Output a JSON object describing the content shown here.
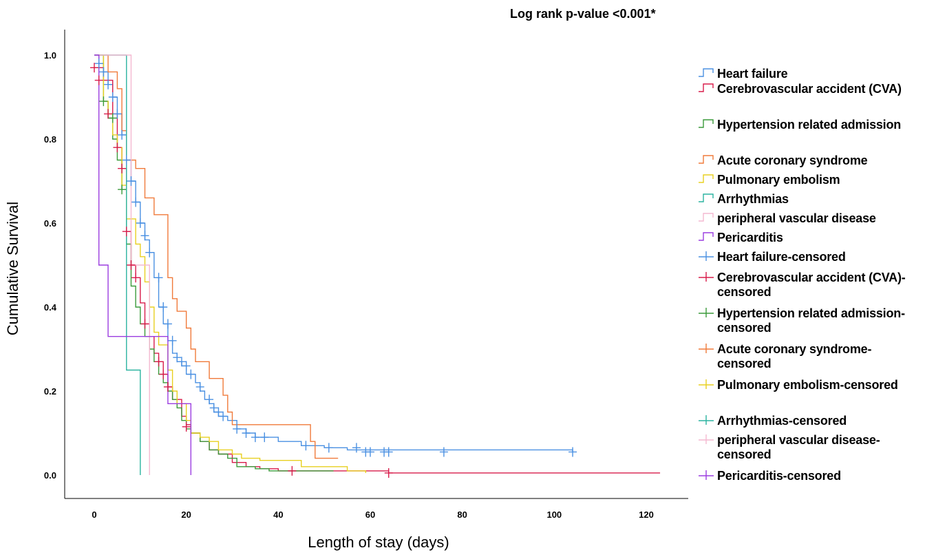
{
  "chart_data": {
    "type": "line",
    "title": "Log rank p-value <0.001*",
    "xlabel": "Length of stay (days)",
    "ylabel": "Cumulative Survival",
    "xlim": [
      -6,
      130
    ],
    "ylim": [
      -0.05,
      1.05
    ],
    "xticks": [
      "0",
      "20",
      "40",
      "60",
      "80",
      "100",
      "120"
    ],
    "xtick_values": [
      0,
      20,
      40,
      60,
      80,
      100,
      120
    ],
    "yticks": [
      "0.0",
      "0.2",
      "0.4",
      "0.6",
      "0.8",
      "1.0"
    ],
    "ytick_values": [
      0.0,
      0.2,
      0.4,
      0.6,
      0.8,
      1.0
    ],
    "grid": false,
    "legend_position": "right",
    "legend": [
      "Heart failure",
      "Cerebrovascular accident (CVA)",
      "Hypertension related admission",
      "Acute coronary syndrome",
      "Pulmonary embolism",
      "Arrhythmias",
      "peripheral vascular disease",
      "Pericarditis",
      "Heart failure-censored",
      "Cerebrovascular accident (CVA)-censored",
      "Hypertension related admission-censored",
      "Acute coronary syndrome-censored",
      "Pulmonary embolism-censored",
      "Arrhythmias-censored",
      "peripheral vascular disease-censored",
      "Pericarditis-censored"
    ],
    "series": [
      {
        "name": "Heart failure",
        "color": "#4a90e2",
        "steps": [
          [
            0,
            1.0
          ],
          [
            1,
            0.98
          ],
          [
            2,
            0.96
          ],
          [
            3,
            0.93
          ],
          [
            4,
            0.9
          ],
          [
            5,
            0.86
          ],
          [
            6,
            0.81
          ],
          [
            7,
            0.75
          ],
          [
            8,
            0.7
          ],
          [
            9,
            0.65
          ],
          [
            10,
            0.6
          ],
          [
            11,
            0.56
          ],
          [
            12,
            0.53
          ],
          [
            13,
            0.47
          ],
          [
            14,
            0.4
          ],
          [
            15,
            0.36
          ],
          [
            16,
            0.32
          ],
          [
            17,
            0.29
          ],
          [
            18,
            0.27
          ],
          [
            19,
            0.26
          ],
          [
            20,
            0.24
          ],
          [
            22,
            0.22
          ],
          [
            23,
            0.2
          ],
          [
            24,
            0.18
          ],
          [
            25,
            0.17
          ],
          [
            26,
            0.15
          ],
          [
            27,
            0.14
          ],
          [
            29,
            0.13
          ],
          [
            31,
            0.11
          ],
          [
            33,
            0.1
          ],
          [
            35,
            0.09
          ],
          [
            40,
            0.08
          ],
          [
            45,
            0.07
          ],
          [
            50,
            0.065
          ],
          [
            55,
            0.06
          ],
          [
            104,
            0.055
          ]
        ],
        "censored": [
          [
            1,
            0.98
          ],
          [
            2,
            0.96
          ],
          [
            3,
            0.93
          ],
          [
            4,
            0.9
          ],
          [
            5,
            0.86
          ],
          [
            6,
            0.81
          ],
          [
            7,
            0.75
          ],
          [
            8,
            0.7
          ],
          [
            9,
            0.65
          ],
          [
            10,
            0.6
          ],
          [
            11,
            0.57
          ],
          [
            12,
            0.53
          ],
          [
            14,
            0.47
          ],
          [
            15,
            0.4
          ],
          [
            16,
            0.36
          ],
          [
            17,
            0.32
          ],
          [
            18,
            0.28
          ],
          [
            19,
            0.27
          ],
          [
            20,
            0.26
          ],
          [
            21,
            0.24
          ],
          [
            23,
            0.21
          ],
          [
            25,
            0.18
          ],
          [
            26,
            0.16
          ],
          [
            27,
            0.15
          ],
          [
            28,
            0.14
          ],
          [
            31,
            0.11
          ],
          [
            33,
            0.1
          ],
          [
            35,
            0.09
          ],
          [
            37,
            0.09
          ],
          [
            46,
            0.07
          ],
          [
            51,
            0.065
          ],
          [
            57,
            0.065
          ],
          [
            59,
            0.055
          ],
          [
            60,
            0.055
          ],
          [
            63,
            0.055
          ],
          [
            64,
            0.055
          ],
          [
            76,
            0.055
          ],
          [
            104,
            0.055
          ]
        ]
      },
      {
        "name": "Cerebrovascular accident (CVA)",
        "color": "#d81b4a",
        "steps": [
          [
            0,
            0.97
          ],
          [
            2,
            0.94
          ],
          [
            4,
            0.86
          ],
          [
            5,
            0.78
          ],
          [
            6,
            0.73
          ],
          [
            7,
            0.58
          ],
          [
            8,
            0.5
          ],
          [
            9,
            0.47
          ],
          [
            10,
            0.41
          ],
          [
            11,
            0.36
          ],
          [
            12,
            0.33
          ],
          [
            13,
            0.29
          ],
          [
            14,
            0.27
          ],
          [
            15,
            0.24
          ],
          [
            16,
            0.21
          ],
          [
            17,
            0.18
          ],
          [
            19,
            0.14
          ],
          [
            20,
            0.12
          ],
          [
            21,
            0.1
          ],
          [
            23,
            0.08
          ],
          [
            25,
            0.06
          ],
          [
            27,
            0.05
          ],
          [
            30,
            0.03
          ],
          [
            33,
            0.02
          ],
          [
            36,
            0.015
          ],
          [
            40,
            0.01
          ],
          [
            45,
            0.01
          ],
          [
            55,
            0.01
          ],
          [
            64,
            0.005
          ],
          [
            123,
            0.005
          ]
        ],
        "censored": [
          [
            0,
            0.97
          ],
          [
            1,
            0.94
          ],
          [
            3,
            0.86
          ],
          [
            5,
            0.78
          ],
          [
            6,
            0.73
          ],
          [
            7,
            0.58
          ],
          [
            8,
            0.5
          ],
          [
            9,
            0.47
          ],
          [
            11,
            0.36
          ],
          [
            14,
            0.27
          ],
          [
            15,
            0.24
          ],
          [
            16,
            0.21
          ],
          [
            20,
            0.115
          ],
          [
            43,
            0.01
          ],
          [
            64,
            0.005
          ]
        ]
      },
      {
        "name": "Hypertension related admission",
        "color": "#3a9a3a",
        "steps": [
          [
            0,
            1.0
          ],
          [
            2,
            0.89
          ],
          [
            3,
            0.85
          ],
          [
            4,
            0.8
          ],
          [
            5,
            0.75
          ],
          [
            6,
            0.68
          ],
          [
            7,
            0.55
          ],
          [
            8,
            0.45
          ],
          [
            9,
            0.4
          ],
          [
            10,
            0.36
          ],
          [
            11,
            0.33
          ],
          [
            12,
            0.3
          ],
          [
            13,
            0.27
          ],
          [
            14,
            0.24
          ],
          [
            15,
            0.22
          ],
          [
            16,
            0.2
          ],
          [
            17,
            0.18
          ],
          [
            18,
            0.16
          ],
          [
            19,
            0.13
          ],
          [
            20,
            0.11
          ],
          [
            21,
            0.1
          ],
          [
            23,
            0.08
          ],
          [
            25,
            0.06
          ],
          [
            27,
            0.05
          ],
          [
            29,
            0.04
          ],
          [
            31,
            0.02
          ],
          [
            35,
            0.015
          ],
          [
            38,
            0.01
          ],
          [
            52,
            0.01
          ]
        ],
        "censored": [
          [
            2,
            0.89
          ],
          [
            4,
            0.85
          ],
          [
            6,
            0.68
          ]
        ]
      },
      {
        "name": "Acute coronary syndrome",
        "color": "#f07a3a",
        "steps": [
          [
            0,
            1.0
          ],
          [
            3,
            0.96
          ],
          [
            5,
            0.92
          ],
          [
            6,
            0.82
          ],
          [
            7,
            0.75
          ],
          [
            9,
            0.73
          ],
          [
            11,
            0.66
          ],
          [
            13,
            0.62
          ],
          [
            16,
            0.47
          ],
          [
            17,
            0.42
          ],
          [
            18,
            0.39
          ],
          [
            20,
            0.35
          ],
          [
            21,
            0.3
          ],
          [
            22,
            0.27
          ],
          [
            25,
            0.23
          ],
          [
            28,
            0.19
          ],
          [
            29,
            0.15
          ],
          [
            30,
            0.12
          ],
          [
            47,
            0.08
          ],
          [
            48,
            0.04
          ],
          [
            53,
            0.04
          ]
        ],
        "censored": []
      },
      {
        "name": "Pulmonary embolism",
        "color": "#e8d020",
        "steps": [
          [
            0,
            1.0
          ],
          [
            2,
            0.89
          ],
          [
            3,
            0.86
          ],
          [
            4,
            0.81
          ],
          [
            5,
            0.78
          ],
          [
            6,
            0.69
          ],
          [
            7,
            0.61
          ],
          [
            9,
            0.55
          ],
          [
            10,
            0.52
          ],
          [
            11,
            0.46
          ],
          [
            12,
            0.4
          ],
          [
            13,
            0.34
          ],
          [
            14,
            0.31
          ],
          [
            16,
            0.25
          ],
          [
            17,
            0.2
          ],
          [
            18,
            0.17
          ],
          [
            20,
            0.13
          ],
          [
            21,
            0.1
          ],
          [
            23,
            0.09
          ],
          [
            25,
            0.08
          ],
          [
            27,
            0.06
          ],
          [
            30,
            0.05
          ],
          [
            32,
            0.04
          ],
          [
            36,
            0.035
          ],
          [
            45,
            0.02
          ],
          [
            55,
            0.01
          ],
          [
            59,
            0.005
          ]
        ],
        "censored": []
      },
      {
        "name": "Arrhythmias",
        "color": "#2ab3a0",
        "steps": [
          [
            0,
            1.0
          ],
          [
            7,
            0.25
          ],
          [
            10,
            0.0
          ]
        ],
        "censored": []
      },
      {
        "name": "peripheral vascular disease",
        "color": "#f4b8d0",
        "steps": [
          [
            0,
            1.0
          ],
          [
            8,
            0.5
          ],
          [
            12,
            0.0
          ]
        ],
        "censored": []
      },
      {
        "name": "Pericarditis",
        "color": "#9b3de0",
        "steps": [
          [
            0,
            1.0
          ],
          [
            1,
            0.5
          ],
          [
            3,
            0.33
          ],
          [
            16,
            0.17
          ],
          [
            21,
            0.0
          ]
        ],
        "censored": []
      }
    ]
  }
}
